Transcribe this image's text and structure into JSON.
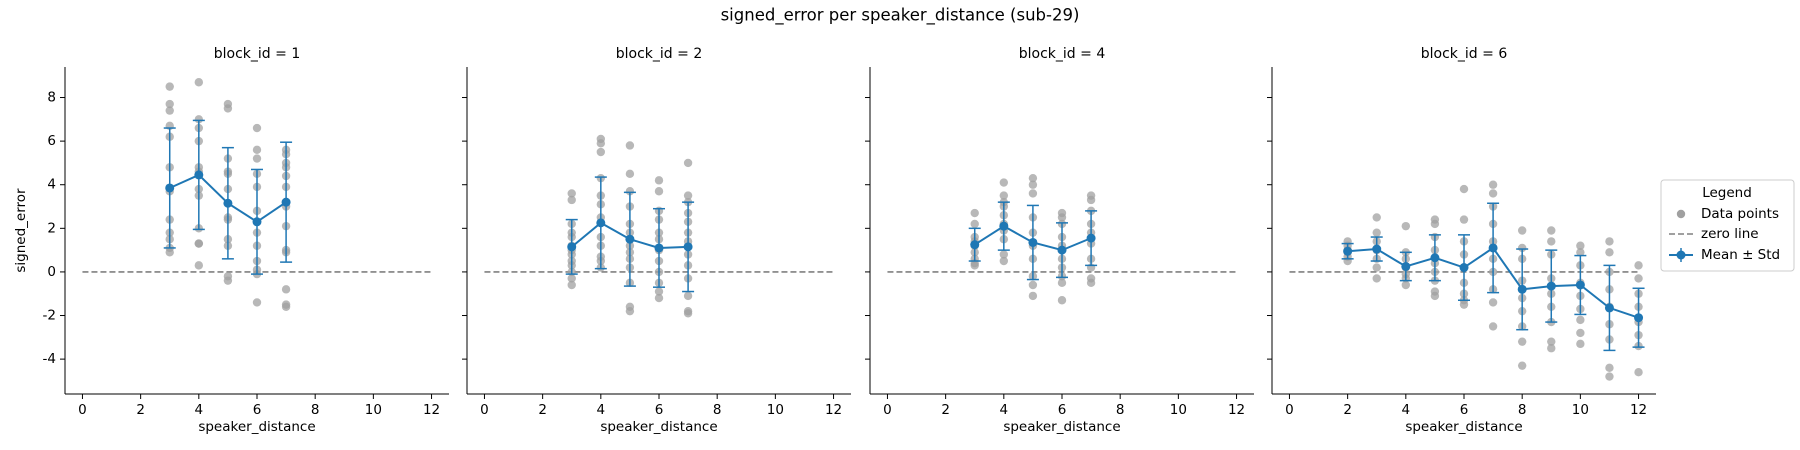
{
  "chart_data": {
    "type": "errorbar",
    "title": "signed_error per speaker_distance (sub-29)",
    "x_label": "speaker_distance",
    "y_label": "signed_error",
    "xlim": [
      -0.6,
      12.6
    ],
    "ylim": [
      -5.6,
      9.4
    ],
    "xticks": [
      0,
      2,
      4,
      6,
      8,
      10,
      12
    ],
    "yticks": [
      -4,
      -2,
      0,
      2,
      4,
      6,
      8
    ],
    "grid": false,
    "legend": {
      "title": "Legend",
      "position": "right"
    },
    "series": [
      {
        "name": "Data points",
        "color": "#a0a0a0"
      },
      {
        "name": "zero line",
        "color": "#808080",
        "value": 0
      },
      {
        "name": "Mean ± Std",
        "color": "#1f77b4"
      }
    ],
    "panels": [
      {
        "title": "block_id = 1",
        "points": {
          "x": [
            3,
            3,
            3,
            3,
            3,
            3,
            3,
            3,
            3,
            3,
            3,
            3,
            4,
            4,
            4,
            4,
            4,
            4,
            4,
            4,
            4,
            4,
            4,
            4,
            5,
            5,
            5,
            5,
            5,
            5,
            5,
            5,
            5,
            5,
            5,
            5,
            6,
            6,
            6,
            6,
            6,
            6,
            6,
            6,
            6,
            6,
            6,
            6,
            7,
            7,
            7,
            7,
            7,
            7,
            7,
            7,
            7,
            7,
            7,
            7,
            7
          ],
          "values": [
            8.5,
            7.7,
            7.4,
            6.7,
            6.2,
            4.8,
            3.7,
            2.4,
            1.8,
            1.5,
            1.1,
            0.9,
            8.7,
            7.0,
            6.6,
            6.0,
            4.8,
            4.6,
            3.8,
            3.5,
            2.0,
            1.3,
            1.3,
            0.3,
            7.7,
            7.5,
            5.2,
            4.6,
            4.5,
            3.8,
            2.5,
            2.4,
            1.5,
            1.2,
            -0.2,
            -0.4,
            6.6,
            5.6,
            5.2,
            4.5,
            3.9,
            2.8,
            1.8,
            1.2,
            0.5,
            0.1,
            -0.1,
            -1.4,
            5.6,
            5.4,
            5.0,
            4.8,
            4.4,
            3.9,
            3.0,
            2.1,
            1.0,
            0.9,
            -0.8,
            -1.5,
            -1.6
          ]
        },
        "mean": {
          "x": [
            3,
            4,
            5,
            6,
            7
          ],
          "values": [
            3.85,
            4.45,
            3.15,
            2.3,
            3.2
          ],
          "errors": [
            2.75,
            2.5,
            2.55,
            2.4,
            2.75
          ]
        }
      },
      {
        "title": "block_id = 2",
        "points": {
          "x": [
            3,
            3,
            3,
            3,
            3,
            3,
            3,
            3,
            3,
            3,
            3,
            3,
            3,
            4,
            4,
            4,
            4,
            4,
            4,
            4,
            4,
            4,
            4,
            4,
            4,
            5,
            5,
            5,
            5,
            5,
            5,
            5,
            5,
            5,
            5,
            5,
            5,
            5,
            6,
            6,
            6,
            6,
            6,
            6,
            6,
            6,
            6,
            6,
            6,
            6,
            7,
            7,
            7,
            7,
            7,
            7,
            7,
            7,
            7,
            7,
            7,
            7,
            7
          ],
          "values": [
            3.6,
            3.3,
            2.2,
            1.8,
            1.6,
            1.2,
            1.0,
            0.8,
            0.5,
            0.3,
            0.0,
            -0.3,
            -0.6,
            6.1,
            5.9,
            5.5,
            4.3,
            3.5,
            3.1,
            2.5,
            1.6,
            1.2,
            0.7,
            0.5,
            0.2,
            5.8,
            4.5,
            3.7,
            3.0,
            2.2,
            1.8,
            1.2,
            0.9,
            0.6,
            0.2,
            -0.5,
            -1.6,
            -1.8,
            4.2,
            3.7,
            2.8,
            2.4,
            1.8,
            1.5,
            1.0,
            0.5,
            0.0,
            -0.5,
            -0.9,
            -1.2,
            5.0,
            3.5,
            3.2,
            2.7,
            2.3,
            1.8,
            1.4,
            0.8,
            0.3,
            -0.3,
            -1.1,
            -1.8,
            -1.9
          ]
        },
        "mean": {
          "x": [
            3,
            4,
            5,
            6,
            7
          ],
          "values": [
            1.15,
            2.25,
            1.5,
            1.1,
            1.15
          ],
          "errors": [
            1.25,
            2.1,
            2.15,
            1.8,
            2.05
          ]
        }
      },
      {
        "title": "block_id = 4",
        "points": {
          "x": [
            3,
            3,
            3,
            3,
            3,
            3,
            3,
            3,
            3,
            4,
            4,
            4,
            4,
            4,
            4,
            4,
            4,
            4,
            4,
            5,
            5,
            5,
            5,
            5,
            5,
            5,
            5,
            5,
            5,
            6,
            6,
            6,
            6,
            6,
            6,
            6,
            6,
            6,
            6,
            7,
            7,
            7,
            7,
            7,
            7,
            7,
            7,
            7,
            7
          ],
          "values": [
            2.7,
            2.2,
            1.6,
            1.4,
            1.2,
            0.9,
            0.6,
            0.4,
            0.3,
            4.1,
            3.5,
            3.2,
            3.0,
            2.6,
            2.2,
            1.9,
            1.5,
            0.8,
            0.5,
            4.3,
            4.0,
            3.6,
            2.5,
            1.8,
            1.2,
            0.6,
            -0.2,
            -0.6,
            -1.1,
            2.7,
            2.5,
            2.2,
            1.6,
            1.2,
            0.6,
            0.2,
            -0.2,
            -0.5,
            -1.3,
            3.5,
            3.3,
            2.8,
            2.2,
            1.8,
            1.3,
            0.6,
            0.2,
            -0.3,
            -0.5
          ]
        },
        "mean": {
          "x": [
            3,
            4,
            5,
            6,
            7
          ],
          "values": [
            1.25,
            2.1,
            1.35,
            1.0,
            1.55
          ],
          "errors": [
            0.75,
            1.1,
            1.7,
            1.25,
            1.25
          ]
        }
      },
      {
        "title": "block_id = 6",
        "points": {
          "x": [
            2,
            2,
            2,
            2,
            2,
            2,
            3,
            3,
            3,
            3,
            3,
            3,
            3,
            4,
            4,
            4,
            4,
            4,
            4,
            4,
            5,
            5,
            5,
            5,
            5,
            5,
            5,
            5,
            5,
            6,
            6,
            6,
            6,
            6,
            6,
            6,
            6,
            6,
            7,
            7,
            7,
            7,
            7,
            7,
            7,
            7,
            7,
            7,
            8,
            8,
            8,
            8,
            8,
            8,
            8,
            8,
            8,
            9,
            9,
            9,
            9,
            9,
            9,
            9,
            9,
            9,
            10,
            10,
            10,
            10,
            10,
            10,
            10,
            10,
            10,
            11,
            11,
            11,
            11,
            11,
            11,
            11,
            11,
            11,
            12,
            12,
            12,
            12,
            12,
            12,
            12,
            12
          ],
          "values": [
            1.4,
            1.2,
            1.0,
            0.9,
            0.7,
            0.5,
            2.5,
            1.8,
            1.4,
            1.0,
            0.6,
            0.2,
            -0.3,
            2.1,
            0.9,
            0.6,
            0.2,
            -0.1,
            -0.3,
            -0.6,
            2.4,
            2.2,
            1.6,
            1.0,
            0.4,
            0.0,
            -0.4,
            -0.9,
            -1.1,
            3.8,
            2.4,
            1.4,
            0.8,
            0.2,
            -0.5,
            -1.0,
            -1.3,
            -1.5,
            4.0,
            3.6,
            3.0,
            2.2,
            1.4,
            0.6,
            0.0,
            -0.8,
            -1.4,
            -2.5,
            1.9,
            1.1,
            0.6,
            -0.4,
            -1.2,
            -1.8,
            -2.5,
            -3.2,
            -4.3,
            1.9,
            1.4,
            0.8,
            -0.3,
            -1.0,
            -1.6,
            -2.3,
            -3.2,
            -3.5,
            1.2,
            0.9,
            0.3,
            -0.5,
            -1.1,
            -1.7,
            -2.2,
            -2.8,
            -3.3,
            1.4,
            0.9,
            0.0,
            -0.8,
            -1.6,
            -2.4,
            -3.1,
            -4.4,
            -4.8,
            0.3,
            -0.3,
            -1.0,
            -1.6,
            -2.3,
            -2.9,
            -3.4,
            -4.6
          ]
        },
        "mean": {
          "x": [
            2,
            3,
            4,
            5,
            6,
            7,
            8,
            9,
            10,
            11,
            12
          ],
          "values": [
            0.95,
            1.05,
            0.25,
            0.65,
            0.2,
            1.1,
            -0.8,
            -0.65,
            -0.6,
            -1.65,
            -2.1
          ],
          "errors": [
            0.35,
            0.55,
            0.65,
            1.05,
            1.5,
            2.05,
            1.85,
            1.65,
            1.35,
            1.95,
            1.35
          ]
        }
      }
    ]
  }
}
